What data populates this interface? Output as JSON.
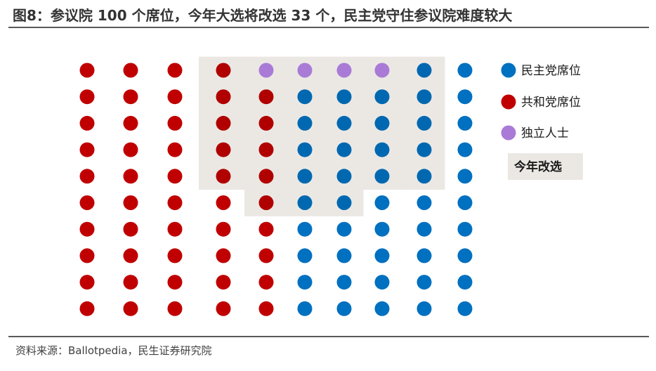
{
  "title": "图8：参议院 100 个席位，今年大选将改选 33 个，民主党守住参议院难度较大",
  "source": "资料来源：Ballotpedia，民生证券研究院",
  "chart_data": {
    "type": "dot-matrix",
    "rows": 10,
    "columns": 10,
    "seat_columns": [
      [
        "R",
        "R",
        "R",
        "R",
        "R",
        "R",
        "R",
        "R",
        "R",
        "R"
      ],
      [
        "R",
        "R",
        "R",
        "R",
        "R",
        "R",
        "R",
        "R",
        "R",
        "R"
      ],
      [
        "R",
        "R",
        "R",
        "R",
        "R",
        "R",
        "R",
        "R",
        "R",
        "R"
      ],
      [
        "R",
        "R",
        "R",
        "R",
        "R",
        "R",
        "R",
        "R",
        "R",
        "R"
      ],
      [
        "I",
        "R",
        "R",
        "R",
        "R",
        "R",
        "R",
        "R",
        "R",
        "R"
      ],
      [
        "I",
        "D",
        "D",
        "D",
        "D",
        "D",
        "D",
        "D",
        "D",
        "D"
      ],
      [
        "I",
        "D",
        "D",
        "D",
        "D",
        "D",
        "D",
        "D",
        "D",
        "D"
      ],
      [
        "I",
        "D",
        "D",
        "D",
        "D",
        "D",
        "D",
        "D",
        "D",
        "D"
      ],
      [
        "D",
        "D",
        "D",
        "D",
        "D",
        "D",
        "D",
        "D",
        "D",
        "D"
      ],
      [
        "D",
        "D",
        "D",
        "D",
        "D",
        "D",
        "D",
        "D",
        "D",
        "D"
      ]
    ],
    "up_for_election": [
      [
        false,
        false,
        false,
        false,
        false,
        false,
        false,
        false,
        false,
        false
      ],
      [
        false,
        false,
        false,
        false,
        false,
        false,
        false,
        false,
        false,
        false
      ],
      [
        false,
        false,
        false,
        false,
        false,
        false,
        false,
        false,
        false,
        false
      ],
      [
        true,
        true,
        true,
        true,
        true,
        false,
        false,
        false,
        false,
        false
      ],
      [
        true,
        true,
        true,
        true,
        true,
        true,
        false,
        false,
        false,
        false
      ],
      [
        true,
        true,
        true,
        true,
        true,
        true,
        false,
        false,
        false,
        false
      ],
      [
        true,
        true,
        true,
        true,
        true,
        true,
        false,
        false,
        false,
        false
      ],
      [
        true,
        true,
        true,
        true,
        true,
        false,
        false,
        false,
        false,
        false
      ],
      [
        true,
        true,
        true,
        true,
        true,
        false,
        false,
        false,
        false,
        false
      ],
      [
        false,
        false,
        false,
        false,
        false,
        false,
        false,
        false,
        false,
        false
      ]
    ],
    "legend": [
      {
        "key": "D",
        "label": "民主党席位",
        "color": "#0070C0"
      },
      {
        "key": "R",
        "label": "共和党席位",
        "color": "#C00000"
      },
      {
        "key": "I",
        "label": "独立人士",
        "color": "#A97BD6"
      }
    ],
    "highlight_label": "今年改选",
    "highlight_color": "#EBE8E4"
  }
}
